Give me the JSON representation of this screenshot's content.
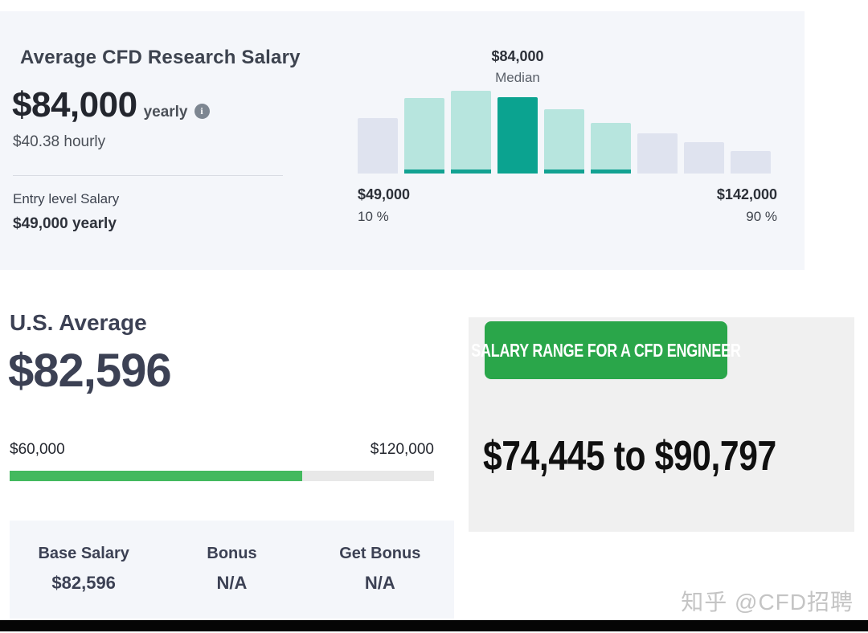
{
  "header": {
    "title": "Average CFD Research Salary",
    "salary_value": "$84,000",
    "salary_period": "yearly",
    "hourly": "$40.38 hourly",
    "entry_label": "Entry level Salary",
    "entry_value": "$49,000 yearly"
  },
  "icons": {
    "info_glyph": "i"
  },
  "chart_data": {
    "type": "bar",
    "title": "CFD Research salary distribution",
    "bars": [
      {
        "rel": 0.67,
        "style": "gray"
      },
      {
        "rel": 0.91,
        "style": "teal-light"
      },
      {
        "rel": 1.0,
        "style": "teal-light"
      },
      {
        "rel": 0.92,
        "style": "teal-solid"
      },
      {
        "rel": 0.78,
        "style": "teal-light"
      },
      {
        "rel": 0.61,
        "style": "teal-light"
      },
      {
        "rel": 0.49,
        "style": "gray"
      },
      {
        "rel": 0.38,
        "style": "gray"
      },
      {
        "rel": 0.27,
        "style": "gray"
      }
    ],
    "median": {
      "value": "$84,000",
      "label": "Median"
    },
    "p10": {
      "value": "$49,000",
      "label": "10 %"
    },
    "p90": {
      "value": "$142,000",
      "label": "90 %"
    },
    "colors": {
      "teal_solid": "#0ba390",
      "teal_light": "#b7e5de",
      "teal_base": "#12a292",
      "gray": "#dfe3ef"
    },
    "legend": "off",
    "grid": "off"
  },
  "us_average": {
    "title": "U.S. Average",
    "value": "$82,596",
    "range_min": "$60,000",
    "range_max": "$120,000",
    "progress_percent": 69,
    "stats": [
      {
        "label": "Base Salary",
        "value": "$82,596"
      },
      {
        "label": "Bonus",
        "value": "N/A"
      },
      {
        "label": "Get Bonus",
        "value": "N/A"
      }
    ]
  },
  "salary_range": {
    "badge": "SALARY RANGE FOR A CFD ENGINEER",
    "text": "$74,445 to $90,797",
    "badge_color": "#2aa64a"
  },
  "watermark": "知乎 @CFD招聘",
  "colors": {
    "panel_bg": "#f4f6fa",
    "progress_green": "#43b95e",
    "navy_text": "#3c4154",
    "bottom_bar": "#050505"
  }
}
